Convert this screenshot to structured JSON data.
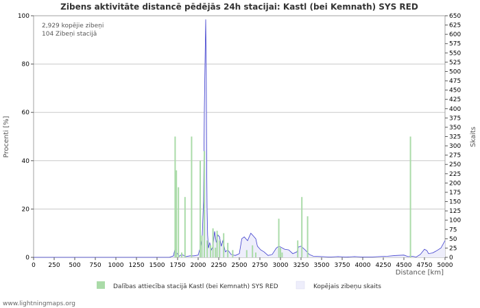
{
  "chart_data": {
    "type": "bar+area",
    "title": "Zibens aktivitāte distancē pēdējās 24h stacijai: Kastl (bei Kemnath) SYS RED",
    "xlabel": "Distance   [km]",
    "ylabel_left": "Procenti   [%]",
    "ylabel_right": "Skaits",
    "xlim": [
      0,
      5000
    ],
    "ylim_left": [
      0,
      100
    ],
    "ylim_right": [
      0,
      650
    ],
    "x_ticks": [
      0,
      250,
      500,
      750,
      1000,
      1250,
      1500,
      1750,
      2000,
      2250,
      2500,
      2750,
      3000,
      3250,
      3500,
      3750,
      4000,
      4250,
      4500,
      4750,
      5000
    ],
    "x_tick_labels": [
      "0",
      "250",
      "500",
      "750",
      "1000",
      "1250",
      "1500",
      "1750",
      "2000",
      "2250",
      "2500",
      "2750",
      "3000",
      "3250",
      "3500",
      "3750",
      "4000",
      "4250",
      "4500",
      "4750",
      "5000"
    ],
    "y_left_ticks": [
      0,
      20,
      40,
      60,
      80,
      100
    ],
    "y_left_tick_labels": [
      "0",
      "20",
      "40",
      "60",
      "80",
      "100"
    ],
    "y_right_ticks": [
      0,
      25,
      50,
      75,
      100,
      125,
      150,
      175,
      200,
      225,
      250,
      275,
      300,
      325,
      350,
      375,
      400,
      425,
      450,
      475,
      500,
      525,
      550,
      575,
      600,
      625,
      650
    ],
    "y_right_tick_labels": [
      "0",
      "25",
      "50",
      "75",
      "100",
      "125",
      "150",
      "175",
      "200",
      "225",
      "250",
      "275",
      "300",
      "325",
      "350",
      "375",
      "400",
      "425",
      "450",
      "475",
      "500",
      "525",
      "550",
      "575",
      "600",
      "625",
      "650"
    ],
    "series": [
      {
        "name": "Dalības attiecība stacijā Kastl (bei Kemnath) SYS RED",
        "kind": "bar",
        "axis": "left",
        "color": "#aadba8",
        "x": [
          1720,
          1735,
          1760,
          1800,
          1840,
          1920,
          2025,
          2045,
          2075,
          2110,
          2150,
          2180,
          2210,
          2230,
          2260,
          2310,
          2360,
          2420,
          2590,
          2660,
          2700,
          2980,
          3000,
          3020,
          3210,
          3260,
          3330,
          4580
        ],
        "values": [
          50,
          36,
          29,
          2,
          25,
          50,
          40,
          9,
          44,
          7,
          5,
          12,
          4,
          11,
          7,
          10,
          6,
          3,
          3,
          5,
          2,
          16,
          4,
          2,
          7,
          25,
          17,
          50
        ]
      },
      {
        "name": "Kopējais zibeņu skaits",
        "kind": "area",
        "axis": "right",
        "color": "#3a3acc",
        "fill": "#eeeefb",
        "x": [
          0,
          1650,
          1700,
          1720,
          1740,
          1770,
          1800,
          1850,
          1900,
          1950,
          2000,
          2030,
          2050,
          2065,
          2075,
          2085,
          2092,
          2098,
          2103,
          2108,
          2115,
          2125,
          2140,
          2160,
          2180,
          2200,
          2220,
          2240,
          2260,
          2280,
          2300,
          2330,
          2360,
          2400,
          2450,
          2500,
          2530,
          2560,
          2600,
          2640,
          2660,
          2680,
          2700,
          2720,
          2760,
          2800,
          2850,
          2900,
          2950,
          2980,
          3000,
          3050,
          3100,
          3150,
          3200,
          3220,
          3250,
          3300,
          3350,
          3400,
          3500,
          3600,
          3700,
          3800,
          3900,
          4000,
          4100,
          4200,
          4300,
          4400,
          4500,
          4550,
          4600,
          4650,
          4700,
          4750,
          4780,
          4800,
          4850,
          4900,
          4950,
          5000
        ],
        "values": [
          0,
          0,
          4,
          25,
          12,
          3,
          8,
          2,
          4,
          4,
          6,
          30,
          60,
          150,
          400,
          550,
          640,
          500,
          260,
          130,
          60,
          25,
          40,
          20,
          30,
          70,
          40,
          60,
          55,
          30,
          45,
          15,
          20,
          8,
          5,
          10,
          50,
          55,
          45,
          65,
          60,
          55,
          50,
          30,
          20,
          15,
          5,
          8,
          25,
          30,
          28,
          22,
          20,
          10,
          15,
          28,
          30,
          20,
          8,
          3,
          2,
          1,
          2,
          1,
          2,
          1,
          1,
          2,
          3,
          5,
          6,
          2,
          3,
          1,
          8,
          22,
          18,
          10,
          12,
          18,
          25,
          45
        ]
      }
    ],
    "annotations": [
      "2,929 kopējie zibeņi",
      "104 Zibeņi stacijā"
    ]
  },
  "footer": {
    "credit": "www.lightningmaps.org"
  },
  "colors": {
    "grid": "#c8c8c8",
    "axis": "#555555",
    "plot_border": "#a0a0a0"
  }
}
